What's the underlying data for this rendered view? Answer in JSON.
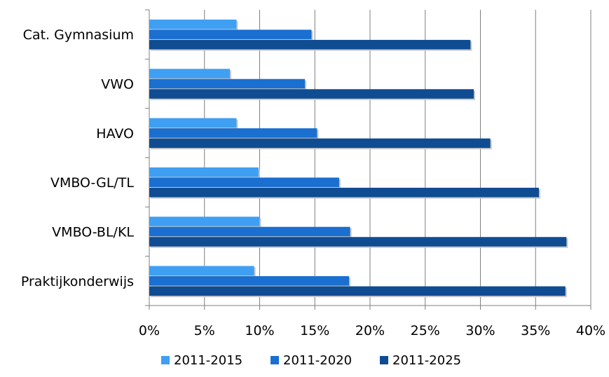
{
  "chart_data": {
    "type": "bar",
    "orientation": "horizontal",
    "categories": [
      "Cat. Gymnasium",
      "VWO",
      "HAVO",
      "VMBO-GL/TL",
      "VMBO-BL/KL",
      "Praktijkonderwijs"
    ],
    "series": [
      {
        "name": "2011-2015",
        "color": "#3f9ff3",
        "values": [
          7.9,
          7.3,
          7.9,
          9.9,
          10.0,
          9.5
        ]
      },
      {
        "name": "2011-2020",
        "color": "#1a6fd0",
        "values": [
          14.7,
          14.1,
          15.2,
          17.2,
          18.2,
          18.1
        ]
      },
      {
        "name": "2011-2025",
        "color": "#0f4c92",
        "values": [
          29.1,
          29.4,
          30.9,
          35.3,
          37.8,
          37.7
        ]
      }
    ],
    "xlim": [
      0,
      40
    ],
    "xticks": [
      "0%",
      "5%",
      "10%",
      "15%",
      "20%",
      "25%",
      "30%",
      "35%",
      "40%"
    ],
    "xtick_values": [
      0,
      5,
      10,
      15,
      20,
      25,
      30,
      35,
      40
    ],
    "legend_position": "bottom",
    "grid": true
  }
}
